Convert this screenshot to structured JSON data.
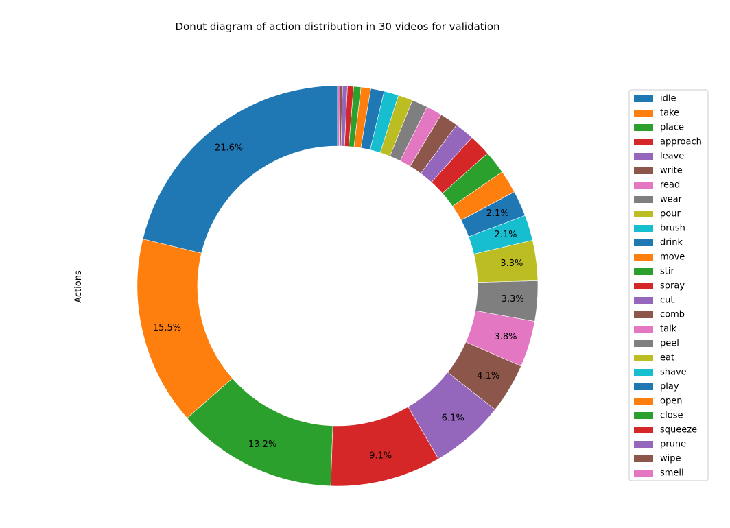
{
  "chart_data": {
    "type": "pie",
    "donut": true,
    "title": "Donut diagram of action distribution in 30 videos for validation",
    "ylabel": "Actions",
    "legend_position": "right",
    "colors": [
      "#1f77b4",
      "#ff7f0e",
      "#2ca02c",
      "#d62728",
      "#9467bd",
      "#8c564b",
      "#e377c2",
      "#7f7f7f",
      "#bcbd22",
      "#17becf"
    ],
    "categories": [
      "idle",
      "take",
      "place",
      "approach",
      "leave",
      "write",
      "read",
      "wear",
      "pour",
      "brush",
      "drink",
      "move",
      "stir",
      "spray",
      "cut",
      "comb",
      "talk",
      "peel",
      "eat",
      "shave",
      "play",
      "open",
      "close",
      "squeeze",
      "prune",
      "wipe",
      "smell"
    ],
    "values": [
      21.6,
      15.5,
      13.2,
      9.1,
      6.1,
      4.1,
      3.8,
      3.3,
      3.3,
      2.1,
      2.1,
      1.9,
      1.9,
      1.8,
      1.6,
      1.5,
      1.3,
      1.3,
      1.2,
      1.2,
      1.1,
      0.8,
      0.6,
      0.5,
      0.4,
      0.2,
      0.2
    ],
    "labels": [
      "21.6%",
      "15.5%",
      "13.2%",
      "9.1%",
      "6.1%",
      "4.1%",
      "3.8%",
      "3.3%",
      "3.3%",
      "2.1%",
      "2.1%",
      "",
      "",
      "",
      "",
      "",
      "",
      "",
      "",
      "",
      "",
      "",
      "",
      "",
      "",
      "",
      ""
    ]
  }
}
